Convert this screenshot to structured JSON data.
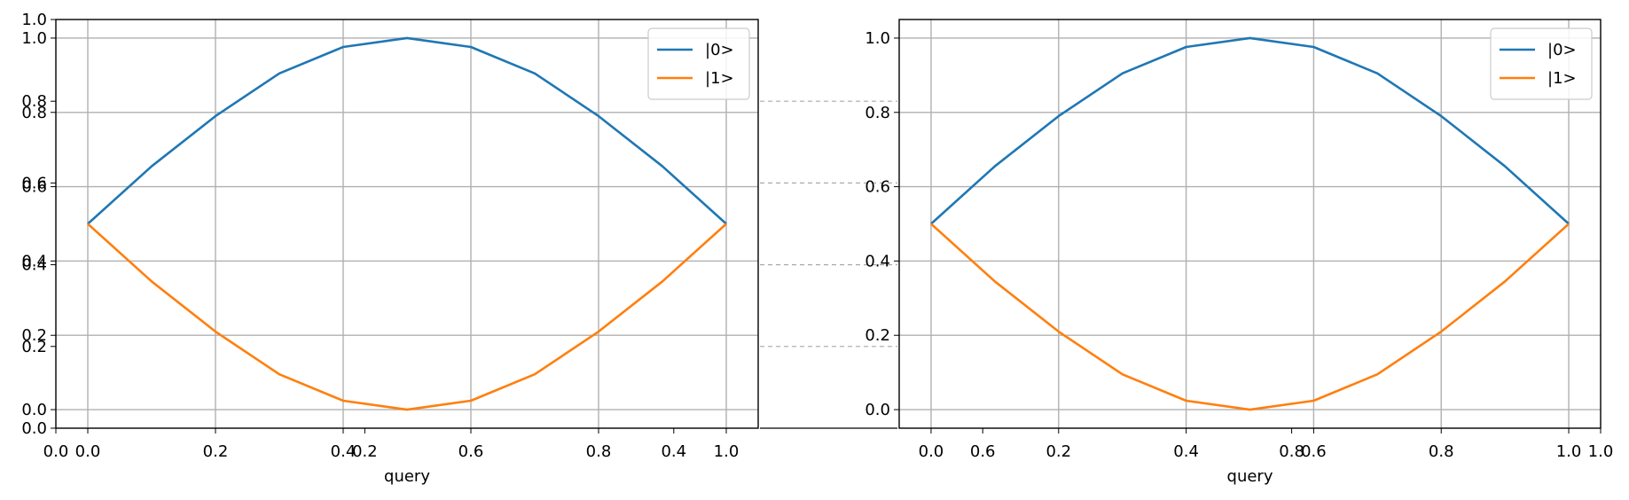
{
  "colors": {
    "series0": "#1f77b4",
    "series1": "#ff7f0e",
    "grid": "#b0b0b0",
    "guide": "#aaaaaa",
    "axis": "#000000"
  },
  "chart_data": [
    {
      "type": "line",
      "xlabel": "query",
      "ylabel": "",
      "xlim": [
        -0.05,
        1.05
      ],
      "ylim": [
        -0.05,
        1.05
      ],
      "grid": true,
      "legend": "top-right",
      "xticks": [
        "0.0",
        "0.2",
        "0.4",
        "0.6",
        "0.8",
        "1.0"
      ],
      "yticks": [
        "0.0",
        "0.2",
        "0.4",
        "0.6",
        "0.8",
        "1.0"
      ],
      "x": [
        0.0,
        0.1,
        0.2,
        0.3,
        0.4,
        0.5,
        0.6,
        0.7,
        0.8,
        0.9,
        1.0
      ],
      "series": [
        {
          "name": "|0>",
          "values": [
            0.5,
            0.655,
            0.79,
            0.905,
            0.976,
            1.0,
            0.976,
            0.905,
            0.79,
            0.655,
            0.5
          ]
        },
        {
          "name": "|1>",
          "values": [
            0.5,
            0.345,
            0.21,
            0.095,
            0.024,
            0.0,
            0.024,
            0.095,
            0.21,
            0.345,
            0.5
          ]
        }
      ]
    },
    {
      "type": "line",
      "xlabel": "query",
      "ylabel": "",
      "xlim": [
        -0.05,
        1.05
      ],
      "ylim": [
        -0.05,
        1.05
      ],
      "grid": true,
      "legend": "top-right",
      "xticks": [
        "0.0",
        "0.2",
        "0.4",
        "0.6",
        "0.8",
        "1.0"
      ],
      "yticks": [
        "0.0",
        "0.2",
        "0.4",
        "0.6",
        "0.8",
        "1.0"
      ],
      "x": [
        0.0,
        0.1,
        0.2,
        0.3,
        0.4,
        0.5,
        0.6,
        0.7,
        0.8,
        0.9,
        1.0
      ],
      "series": [
        {
          "name": "|0>",
          "values": [
            0.5,
            0.655,
            0.79,
            0.905,
            0.976,
            1.0,
            0.976,
            0.905,
            0.79,
            0.655,
            0.5
          ]
        },
        {
          "name": "|1>",
          "values": [
            0.5,
            0.345,
            0.21,
            0.095,
            0.024,
            0.0,
            0.024,
            0.095,
            0.21,
            0.345,
            0.5
          ]
        }
      ]
    }
  ],
  "background_axes": {
    "xticks": [
      "0.0",
      "0.2",
      "0.4",
      "0.6",
      "0.8",
      "1.0"
    ],
    "yticks": [
      "0.0",
      "0.2",
      "0.4",
      "0.6",
      "0.8",
      "1.0"
    ]
  }
}
